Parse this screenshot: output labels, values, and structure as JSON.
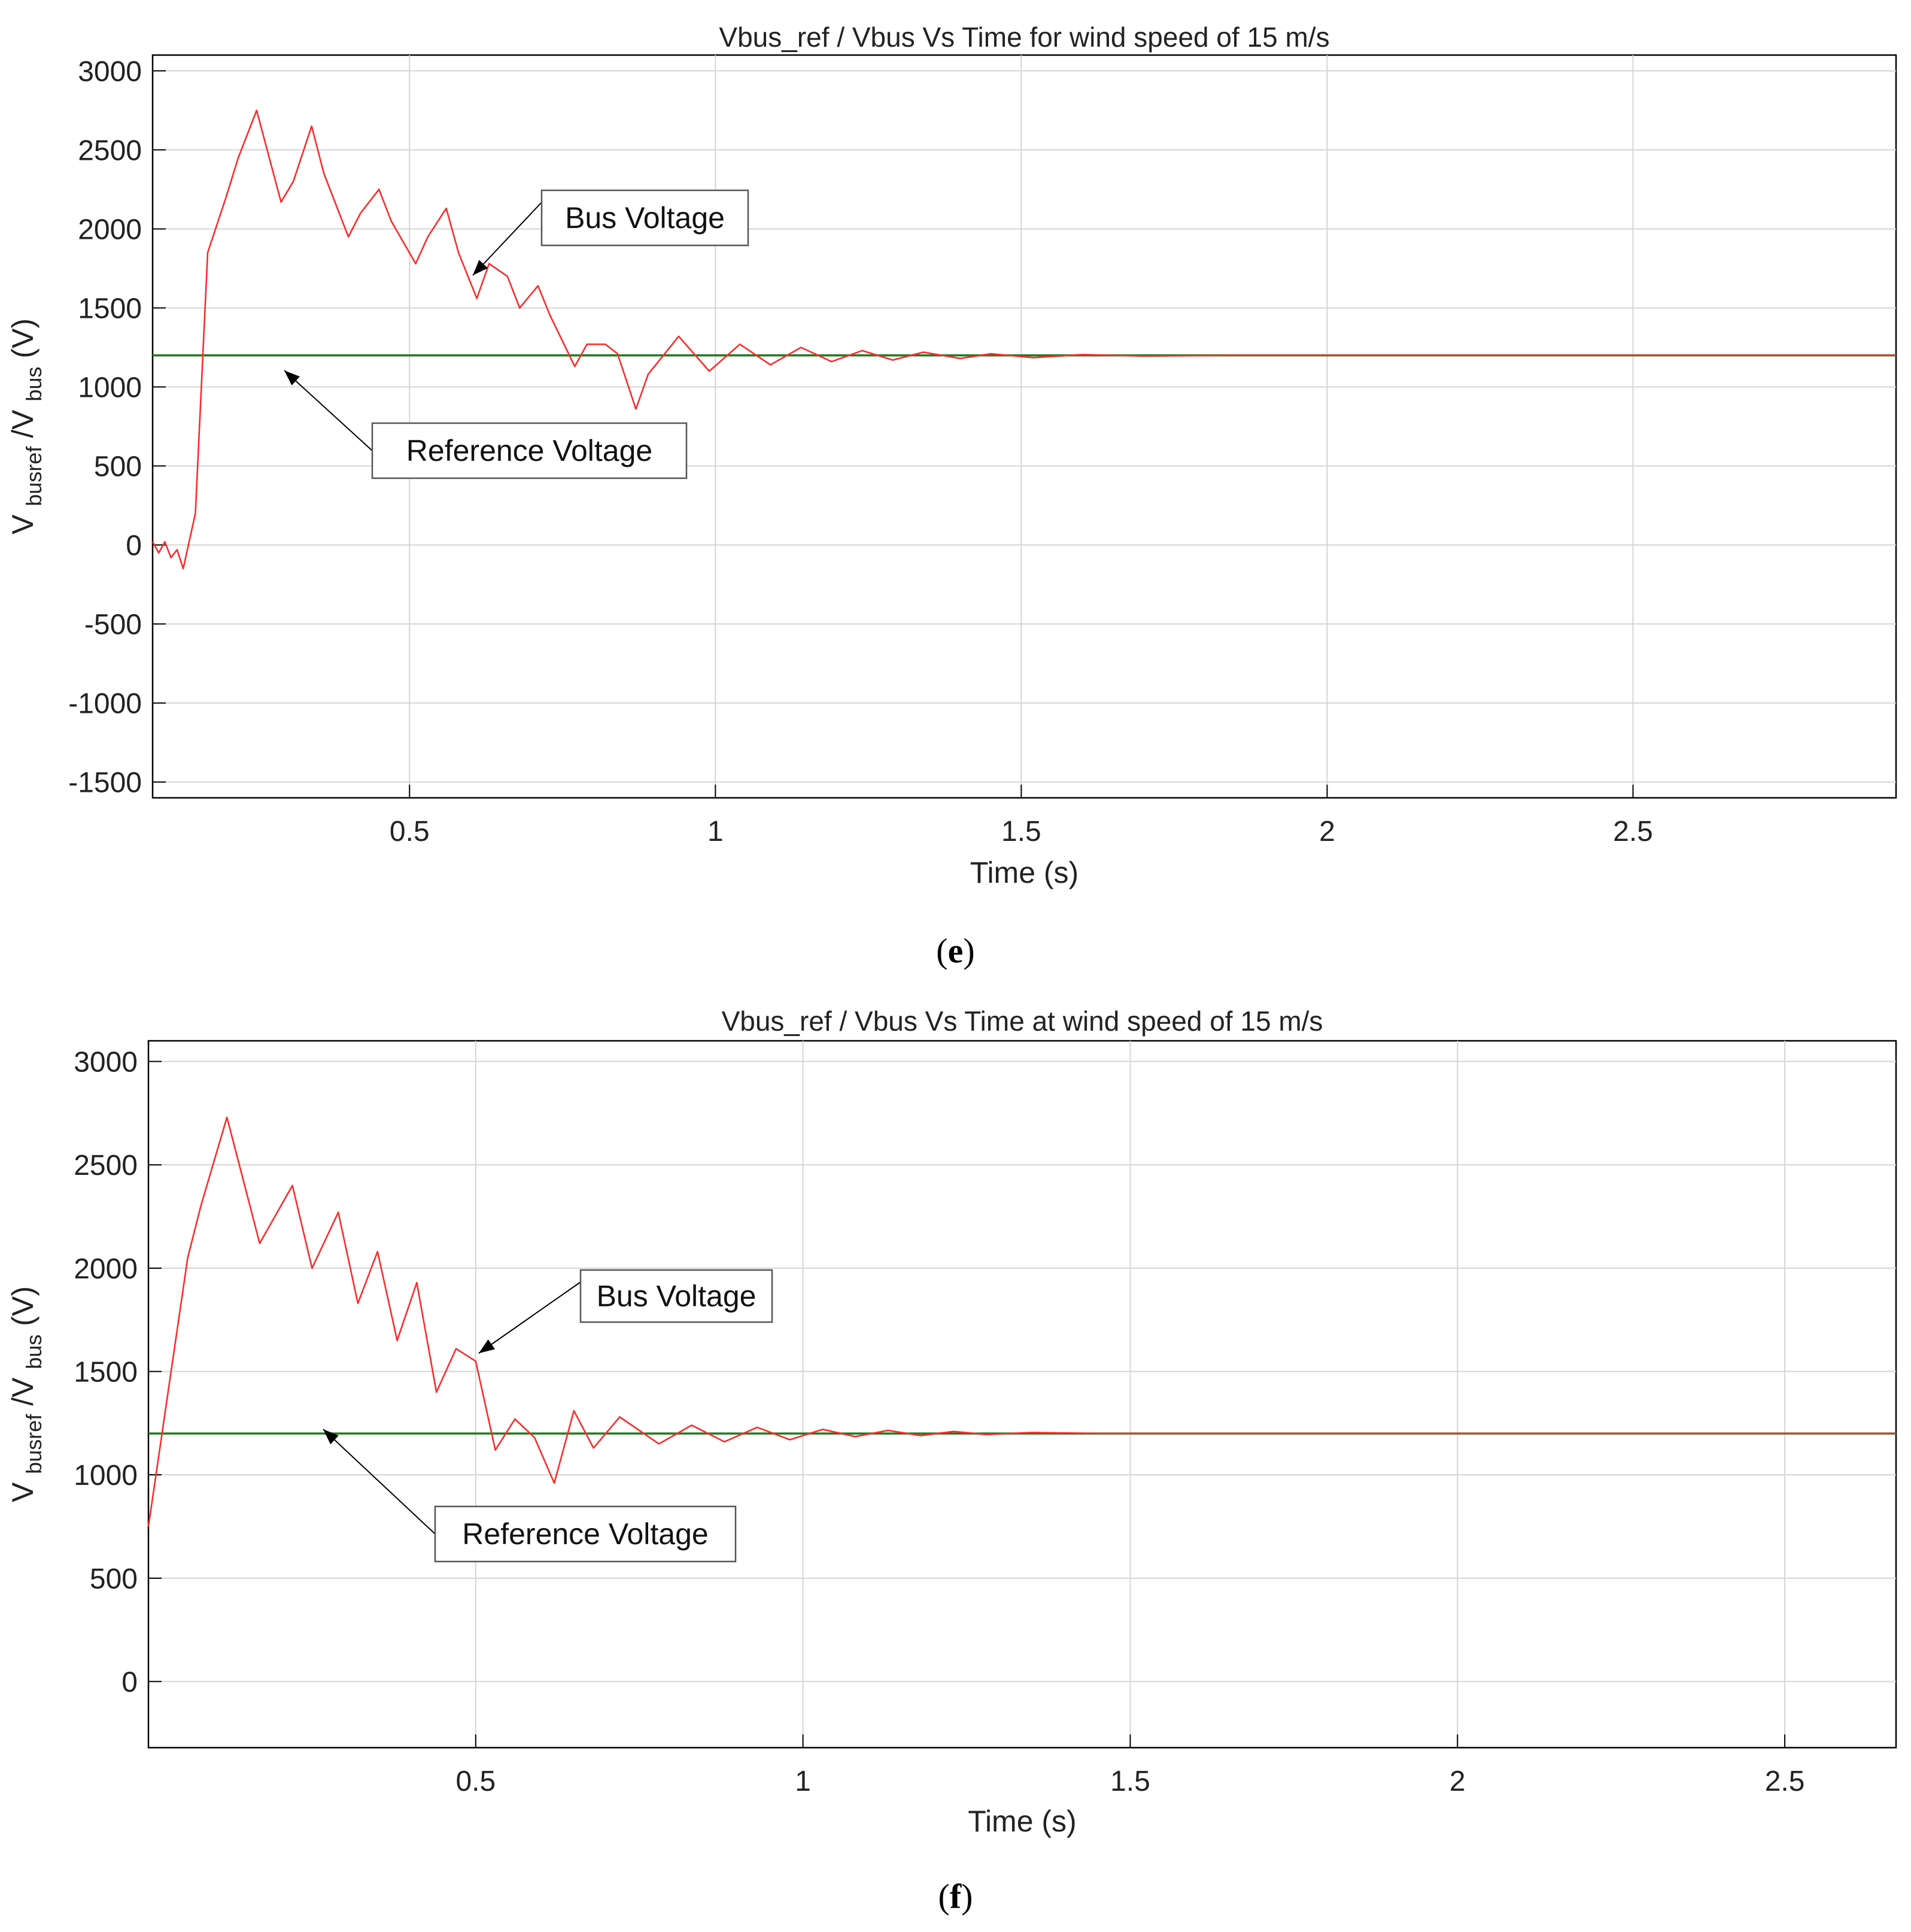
{
  "figure": {
    "panels": [
      {
        "caption": "e"
      },
      {
        "caption": "f"
      }
    ]
  },
  "chart_data": [
    {
      "type": "line",
      "title": "Vbus_ref / Vbus Vs Time for wind speed of 15 m/s",
      "xlabel": "Time (s)",
      "ylabel": {
        "base": "V",
        "sub1": "busref",
        "mid": " /V",
        "sub2": "bus",
        "tail": " (V)"
      },
      "xlim": [
        0.08,
        2.93
      ],
      "ylim": [
        -1600,
        3100
      ],
      "xticks": [
        0.5,
        1,
        1.5,
        2,
        2.5
      ],
      "xtick_labels": [
        "0.5",
        "1",
        "1.5",
        "2",
        "2.5"
      ],
      "yticks": [
        -1500,
        -1000,
        -500,
        0,
        500,
        1000,
        1500,
        2000,
        2500,
        3000
      ],
      "ytick_labels": [
        "-1500",
        "-1000",
        "-500",
        "0",
        "500",
        "1000",
        "1500",
        "2000",
        "2500",
        "3000"
      ],
      "grid": true,
      "series": [
        {
          "name": "Bus Voltage",
          "color": "#ff2a2a",
          "x": [
            0.08,
            0.09,
            0.1,
            0.11,
            0.12,
            0.13,
            0.15,
            0.17,
            0.2,
            0.22,
            0.25,
            0.29,
            0.31,
            0.34,
            0.36,
            0.4,
            0.42,
            0.45,
            0.47,
            0.51,
            0.53,
            0.56,
            0.58,
            0.61,
            0.63,
            0.66,
            0.68,
            0.71,
            0.73,
            0.77,
            0.79,
            0.82,
            0.84,
            0.87,
            0.89,
            0.94,
            0.99,
            1.04,
            1.09,
            1.14,
            1.19,
            1.24,
            1.29,
            1.34,
            1.4,
            1.45,
            1.52,
            1.6,
            1.7,
            1.85,
            2.0,
            2.2,
            2.4,
            2.6,
            2.8,
            2.93
          ],
          "values": [
            20,
            -50,
            20,
            -80,
            -30,
            -150,
            200,
            1850,
            2200,
            2450,
            2750,
            2170,
            2300,
            2650,
            2350,
            1950,
            2100,
            2250,
            2050,
            1780,
            1950,
            2130,
            1850,
            1560,
            1780,
            1700,
            1500,
            1640,
            1450,
            1130,
            1270,
            1270,
            1210,
            860,
            1080,
            1320,
            1100,
            1270,
            1140,
            1250,
            1160,
            1230,
            1170,
            1220,
            1180,
            1210,
            1185,
            1205,
            1195,
            1200,
            1200,
            1200,
            1200,
            1200,
            1200,
            1200
          ]
        },
        {
          "name": "Reference Voltage",
          "color": "#1f7a1f",
          "x": [
            0.08,
            2.93
          ],
          "values": [
            1200,
            1200
          ]
        }
      ],
      "annotations": [
        {
          "text": "Bus Voltage",
          "point_x": 0.59,
          "point_y": 1820
        },
        {
          "text": "Reference Voltage",
          "point_x": 0.28,
          "point_y": 1200
        }
      ]
    },
    {
      "type": "line",
      "title": "Vbus_ref / Vbus Vs Time at wind speed of 15 m/s",
      "xlabel": "Time (s)",
      "ylabel": {
        "base": "V",
        "sub1": "busref",
        "mid": " /V",
        "sub2": "bus",
        "tail": " (V)"
      },
      "xlim": [
        0.0,
        2.67
      ],
      "ylim": [
        -320,
        3100
      ],
      "xticks": [
        0.5,
        1,
        1.5,
        2,
        2.5
      ],
      "xtick_labels": [
        "0.5",
        "1",
        "1.5",
        "2",
        "2.5"
      ],
      "yticks": [
        0,
        500,
        1000,
        1500,
        2000,
        2500,
        3000
      ],
      "ytick_labels": [
        "0",
        "500",
        "1000",
        "1500",
        "2000",
        "2500",
        "3000"
      ],
      "grid": true,
      "series": [
        {
          "name": "Bus Voltage",
          "color": "#ff2a2a",
          "x": [
            0.0,
            0.03,
            0.06,
            0.08,
            0.12,
            0.17,
            0.22,
            0.25,
            0.29,
            0.32,
            0.35,
            0.38,
            0.41,
            0.44,
            0.47,
            0.5,
            0.53,
            0.56,
            0.59,
            0.62,
            0.65,
            0.68,
            0.72,
            0.78,
            0.83,
            0.88,
            0.93,
            0.98,
            1.03,
            1.08,
            1.13,
            1.18,
            1.23,
            1.28,
            1.35,
            1.45,
            1.55,
            1.7,
            1.9,
            2.1,
            2.3,
            2.5,
            2.67
          ],
          "values": [
            750,
            1400,
            2050,
            2300,
            2730,
            2120,
            2400,
            2000,
            2270,
            1830,
            2080,
            1650,
            1930,
            1400,
            1610,
            1550,
            1120,
            1270,
            1180,
            960,
            1310,
            1130,
            1280,
            1150,
            1240,
            1160,
            1230,
            1170,
            1220,
            1185,
            1215,
            1190,
            1210,
            1195,
            1205,
            1200,
            1200,
            1200,
            1200,
            1200,
            1200,
            1200,
            1200
          ]
        },
        {
          "name": "Reference Voltage",
          "color": "#1f7a1f",
          "x": [
            0.0,
            2.67
          ],
          "values": [
            1200,
            1200
          ]
        }
      ],
      "annotations": [
        {
          "text": "Bus Voltage",
          "point_x": 0.5,
          "point_y": 1580
        },
        {
          "text": "Reference Voltage",
          "point_x": 0.26,
          "point_y": 1200
        }
      ]
    }
  ]
}
